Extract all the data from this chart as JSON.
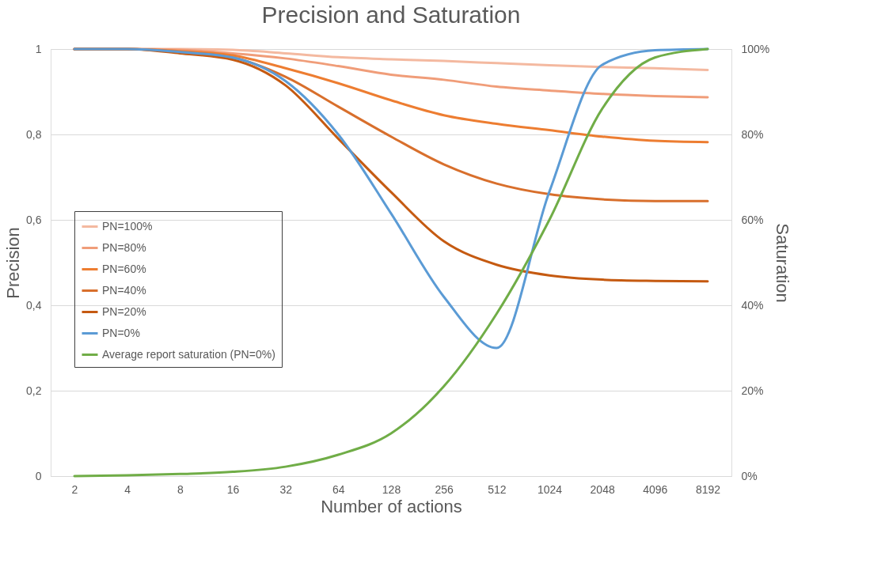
{
  "chart_data": {
    "type": "line",
    "title": "Precision and Saturation",
    "xlabel": "Number of actions",
    "ylabel": "Precision",
    "y2label": "Saturation",
    "categories": [
      "2",
      "4",
      "8",
      "16",
      "32",
      "64",
      "128",
      "256",
      "512",
      "1024",
      "2048",
      "4096",
      "8192"
    ],
    "series": [
      {
        "name": "PN=100%",
        "color": "#f4b9a0",
        "values": [
          1,
          1,
          1,
          0.998,
          0.99,
          0.981,
          0.976,
          0.972,
          0.967,
          0.962,
          0.958,
          0.955,
          0.951
        ]
      },
      {
        "name": "PN=80%",
        "color": "#f09d79",
        "values": [
          1,
          1,
          0.998,
          0.99,
          0.978,
          0.96,
          0.94,
          0.928,
          0.912,
          0.903,
          0.895,
          0.89,
          0.887
        ]
      },
      {
        "name": "PN=60%",
        "color": "#ed7d31",
        "values": [
          1,
          1,
          0.995,
          0.985,
          0.955,
          0.92,
          0.88,
          0.845,
          0.825,
          0.81,
          0.795,
          0.785,
          0.782
        ]
      },
      {
        "name": "PN=40%",
        "color": "#d86f2c",
        "values": [
          1,
          1,
          0.993,
          0.98,
          0.935,
          0.865,
          0.795,
          0.73,
          0.685,
          0.66,
          0.648,
          0.644,
          0.644
        ]
      },
      {
        "name": "PN=20%",
        "color": "#c55a11",
        "values": [
          1,
          1,
          0.99,
          0.975,
          0.915,
          0.79,
          0.665,
          0.55,
          0.495,
          0.47,
          0.46,
          0.457,
          0.456
        ]
      },
      {
        "name": "PN=0%",
        "color": "#5b9bd5",
        "values": [
          1,
          1,
          0.993,
          0.98,
          0.925,
          0.8,
          0.615,
          0.42,
          0.3,
          0.666,
          0.963,
          0.997,
          1
        ]
      },
      {
        "name": "Average report saturation (PN=0%)",
        "color": "#70ad47",
        "axis": "y2",
        "values": [
          0,
          0.2,
          0.5,
          1,
          2.2,
          5,
          10,
          21,
          38,
          60,
          86,
          98,
          100
        ]
      }
    ],
    "ylim": [
      0,
      1
    ],
    "yticks": [
      0,
      {
        "value": 0.2,
        "label": "0,2"
      },
      {
        "value": 0.4,
        "label": "0,4"
      },
      {
        "value": 0.6,
        "label": "0,6"
      },
      {
        "value": 0.8,
        "label": "0,8"
      },
      1
    ],
    "y2lim": [
      0,
      100
    ],
    "y2ticks": [
      {
        "value": 0,
        "label": "0%"
      },
      {
        "value": 20,
        "label": "20%"
      },
      {
        "value": 40,
        "label": "40%"
      },
      {
        "value": 60,
        "label": "60%"
      },
      {
        "value": 80,
        "label": "80%"
      },
      {
        "value": 100,
        "label": "100%"
      }
    ],
    "grid": "y",
    "legend": "left",
    "marker": "none",
    "line_style": "solid"
  }
}
